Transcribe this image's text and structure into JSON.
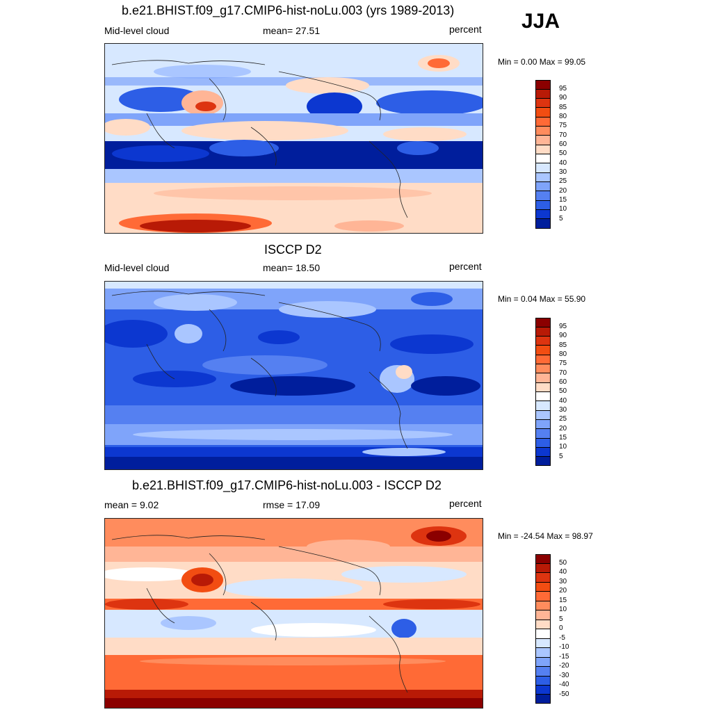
{
  "season": "JJA",
  "panels": [
    {
      "title": "b.e21.BHIST.f09_g17.CMIP6-hist-noLu.003 (yrs 1989-2013)",
      "left_label": "Mid-level cloud",
      "center_label": "mean=  27.51",
      "right_label": "percent",
      "minmax": "Min =   0.00 Max =  99.05",
      "scheme": "abs",
      "colorbar_labels": [
        "95",
        "90",
        "85",
        "80",
        "75",
        "70",
        "60",
        "50",
        "40",
        "30",
        "25",
        "20",
        "15",
        "10",
        "5"
      ]
    },
    {
      "title": "ISCCP D2",
      "left_label": "Mid-level cloud",
      "center_label": "mean=  18.50",
      "right_label": "percent",
      "minmax": "Min =   0.04 Max =  55.90",
      "scheme": "abs",
      "colorbar_labels": [
        "95",
        "90",
        "85",
        "80",
        "75",
        "70",
        "60",
        "50",
        "40",
        "30",
        "25",
        "20",
        "15",
        "10",
        "5"
      ]
    },
    {
      "title": "b.e21.BHIST.f09_g17.CMIP6-hist-noLu.003 - ISCCP D2",
      "left_label": "mean =   9.02",
      "center_label": "rmse =  17.09",
      "right_label": "percent",
      "minmax": "Min = -24.54 Max =  98.97",
      "scheme": "diff",
      "colorbar_labels": [
        "50",
        "40",
        "30",
        "20",
        "15",
        "10",
        "5",
        "0",
        "-5",
        "-10",
        "-15",
        "-20",
        "-30",
        "-40",
        "-50"
      ]
    }
  ],
  "colors": {
    "abs": [
      "#8b0000",
      "#b81a06",
      "#dd3410",
      "#f24d12",
      "#ff6a36",
      "#ff8c5d",
      "#ffb596",
      "#ffdcc6",
      "#ffffff",
      "#d7e8ff",
      "#aac6ff",
      "#7fa4fa",
      "#5580f1",
      "#2d5ee6",
      "#0c37d0",
      "#001e9c"
    ],
    "diff": [
      "#8b0000",
      "#b81a06",
      "#dd3410",
      "#f24d12",
      "#ff6a36",
      "#ff8c5d",
      "#ffb596",
      "#ffdcc6",
      "#ffffff",
      "#d7e8ff",
      "#aac6ff",
      "#7fa4fa",
      "#5580f1",
      "#2d5ee6",
      "#0c37d0",
      "#001e9c"
    ]
  }
}
